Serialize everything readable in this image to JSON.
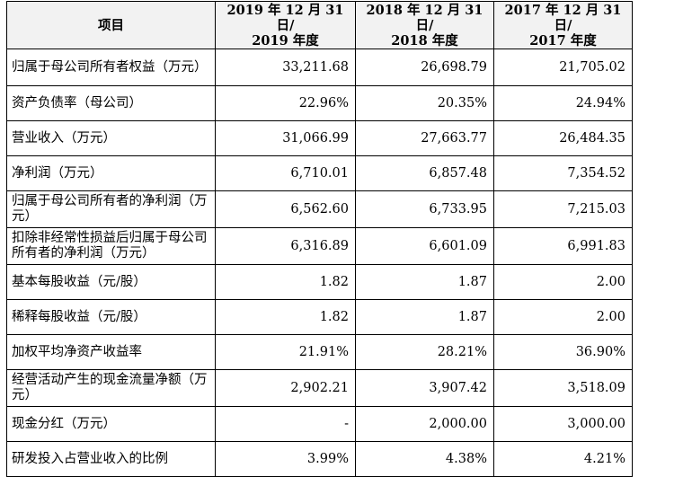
{
  "headers": [
    {
      "line1": "项目",
      "line2": ""
    },
    {
      "line1": "2019 年 12 月 31 日/",
      "line2": "2019 年度"
    },
    {
      "line1": "2018 年 12 月 31 日/",
      "line2": "2018 年度"
    },
    {
      "line1": "2017 年 12 月 31 日/",
      "line2": "2017 年度"
    }
  ],
  "rows": [
    {
      "label": "归属于母公司所有者权益（万元）",
      "v2019": "33,211.68",
      "v2018": "26,698.79",
      "v2017": "21,705.02",
      "tall": true
    },
    {
      "label": "资产负债率（母公司）",
      "v2019": "22.96%",
      "v2018": "20.35%",
      "v2017": "24.94%",
      "tall": false
    },
    {
      "label": "营业收入（万元）",
      "v2019": "31,066.99",
      "v2018": "27,663.77",
      "v2017": "26,484.35",
      "tall": false
    },
    {
      "label": "净利润（万元）",
      "v2019": "6,710.01",
      "v2018": "6,857.48",
      "v2017": "7,354.52",
      "tall": false
    },
    {
      "label": "归属于母公司所有者的净利润（万元）",
      "v2019": "6,562.60",
      "v2018": "6,733.95",
      "v2017": "7,215.03",
      "tall": true
    },
    {
      "label": "扣除非经常性损益后归属于母公司所有者的净利润（万元）",
      "v2019": "6,316.89",
      "v2018": "6,601.09",
      "v2017": "6,991.83",
      "tall": true
    },
    {
      "label": "基本每股收益（元/股）",
      "v2019": "1.82",
      "v2018": "1.87",
      "v2017": "2.00",
      "tall": false
    },
    {
      "label": "稀释每股收益（元/股）",
      "v2019": "1.82",
      "v2018": "1.87",
      "v2017": "2.00",
      "tall": false
    },
    {
      "label": "加权平均净资产收益率",
      "v2019": "21.91%",
      "v2018": "28.21%",
      "v2017": "36.90%",
      "tall": false
    },
    {
      "label": "经营活动产生的现金流量净额（万元）",
      "v2019": "2,902.21",
      "v2018": "3,907.42",
      "v2017": "3,518.09",
      "tall": true
    },
    {
      "label": "现金分红（万元）",
      "v2019": "-",
      "v2018": "2,000.00",
      "v2017": "3,000.00",
      "tall": false
    },
    {
      "label": "研发投入占营业收入的比例",
      "v2019": "3.99%",
      "v2018": "4.38%",
      "v2017": "4.21%",
      "tall": false
    }
  ]
}
